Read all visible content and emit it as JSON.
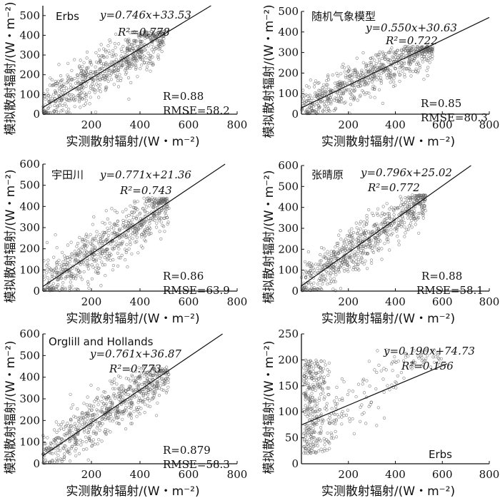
{
  "chart_data": [
    {
      "type": "scatter",
      "panel_label": "Erbs",
      "equation": "y=0.746x+33.53",
      "r2_text": "R²=0.778",
      "r_text": "R=0.88",
      "rmse_text": "RMSE=58.2",
      "xlabel": "实测散射辐射/(W・m⁻²)",
      "ylabel": "模拟散射辐射/(W・m⁻²)",
      "xlim": [
        0,
        800
      ],
      "ylim": [
        0,
        550
      ],
      "xticks": [
        200,
        400,
        600,
        800
      ],
      "yticks": [
        0,
        100,
        200,
        300,
        400,
        500
      ],
      "fit": {
        "slope": 0.746,
        "intercept": 33.53
      },
      "obs_max": 500,
      "sim_max": 420,
      "spread": 55,
      "point_count": 700
    },
    {
      "type": "scatter",
      "panel_label": "随机气象模型",
      "equation": "y=0.550x+30.63",
      "r2_text": "R²=0.722",
      "r_text": "R=0.85",
      "rmse_text": "RMSE=80.3",
      "xlabel": "实测散射辐射/(W・m⁻²)",
      "ylabel": "模拟散射辐射/(W・m⁻²)",
      "xlim": [
        0,
        800
      ],
      "ylim": [
        0,
        500
      ],
      "xticks": [
        200,
        400,
        600,
        800
      ],
      "yticks": [
        0,
        100,
        200,
        300,
        400,
        500
      ],
      "fit": {
        "slope": 0.55,
        "intercept": 30.63
      },
      "obs_max": 560,
      "sim_max": 330,
      "spread": 50,
      "point_count": 700
    },
    {
      "type": "scatter",
      "panel_label": "宇田川",
      "equation": "y=0.771x+21.36",
      "r2_text": "R²=0.743",
      "r_text": "R=0.86",
      "rmse_text": "RMSE=63.9",
      "xlabel": "实测散射辐射/(W・m⁻²)",
      "ylabel": "模拟散射辐射/(W・m⁻²)",
      "xlim": [
        0,
        800
      ],
      "ylim": [
        0,
        600
      ],
      "xticks": [
        200,
        400,
        600,
        800
      ],
      "yticks": [
        0,
        100,
        200,
        300,
        400,
        500,
        600
      ],
      "fit": {
        "slope": 0.771,
        "intercept": 21.36
      },
      "obs_max": 520,
      "sim_max": 440,
      "spread": 60,
      "point_count": 700
    },
    {
      "type": "scatter",
      "panel_label": "张晴原",
      "equation": "y=0.796x+25.02",
      "r2_text": "R²=0.772",
      "r_text": "R=0.88",
      "rmse_text": "RMSE=58.1",
      "xlabel": "实测散射辐射/(W・m⁻²)",
      "ylabel": "模拟散射辐射/(W・m⁻²)",
      "xlim": [
        0,
        800
      ],
      "ylim": [
        0,
        600
      ],
      "xticks": [
        200,
        400,
        600,
        800
      ],
      "yticks": [
        0,
        100,
        200,
        300,
        400,
        500,
        600
      ],
      "fit": {
        "slope": 0.796,
        "intercept": 25.02
      },
      "obs_max": 530,
      "sim_max": 460,
      "spread": 55,
      "point_count": 700
    },
    {
      "type": "scatter",
      "panel_label": "Orglill and Hollands",
      "equation": "y=0.761x+36.87",
      "r2_text": "R²=0.773",
      "r_text": "R=0.879",
      "rmse_text": "RMSE=58.3",
      "xlabel": "实测散射辐射/(W・m⁻²)",
      "ylabel": "模拟散射辐射/(W・m⁻²)",
      "xlim": [
        0,
        800
      ],
      "ylim": [
        0,
        600
      ],
      "xticks": [
        200,
        400,
        600,
        800
      ],
      "yticks": [
        0,
        100,
        200,
        300,
        400,
        500,
        600
      ],
      "fit": {
        "slope": 0.761,
        "intercept": 36.87
      },
      "obs_max": 520,
      "sim_max": 450,
      "spread": 55,
      "point_count": 700
    },
    {
      "type": "scatter",
      "panel_label": "Erbs",
      "equation": "y=0.190x+74.73",
      "r2_text": "R²=0.156",
      "r_text": "",
      "rmse_text": "",
      "xlabel": "实测散射辐射/(W・m⁻²)",
      "ylabel": "模拟散射辐射/(W・m⁻²)",
      "xlim": [
        0,
        800
      ],
      "ylim": [
        0,
        250
      ],
      "xticks": [
        200,
        400,
        600,
        800
      ],
      "yticks": [
        0,
        50,
        100,
        150,
        200,
        250
      ],
      "fit": {
        "slope": 0.19,
        "intercept": 74.73
      },
      "obs_max": 600,
      "sim_max": 220,
      "spread": 30,
      "point_count": 450
    }
  ]
}
